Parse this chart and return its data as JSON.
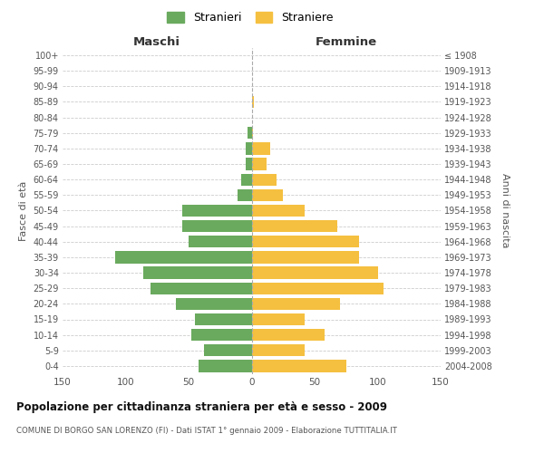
{
  "age_groups": [
    "100+",
    "95-99",
    "90-94",
    "85-89",
    "80-84",
    "75-79",
    "70-74",
    "65-69",
    "60-64",
    "55-59",
    "50-54",
    "45-49",
    "40-44",
    "35-39",
    "30-34",
    "25-29",
    "20-24",
    "15-19",
    "10-14",
    "5-9",
    "0-4"
  ],
  "birth_years": [
    "≤ 1908",
    "1909-1913",
    "1914-1918",
    "1919-1923",
    "1924-1928",
    "1929-1933",
    "1934-1938",
    "1939-1943",
    "1944-1948",
    "1949-1953",
    "1954-1958",
    "1959-1963",
    "1964-1968",
    "1969-1973",
    "1974-1978",
    "1979-1983",
    "1984-1988",
    "1989-1993",
    "1994-1998",
    "1999-2003",
    "2004-2008"
  ],
  "maschi": [
    0,
    0,
    0,
    0,
    0,
    3,
    5,
    5,
    8,
    11,
    55,
    55,
    50,
    108,
    86,
    80,
    60,
    45,
    48,
    38,
    42
  ],
  "femmine": [
    0,
    0,
    0,
    2,
    0,
    1,
    15,
    12,
    20,
    25,
    42,
    68,
    85,
    85,
    100,
    105,
    70,
    42,
    58,
    42,
    75
  ],
  "maschi_color": "#6aaa5e",
  "femmine_color": "#f5c040",
  "bg_color": "#ffffff",
  "grid_color": "#cccccc",
  "title": "Popolazione per cittadinanza straniera per età e sesso - 2009",
  "subtitle": "COMUNE DI BORGO SAN LORENZO (FI) - Dati ISTAT 1° gennaio 2009 - Elaborazione TUTTITALIA.IT",
  "ylabel_left": "Fasce di età",
  "ylabel_right": "Anni di nascita",
  "label_maschi": "Maschi",
  "label_femmine": "Femmine",
  "legend_m": "Stranieri",
  "legend_f": "Straniere",
  "xlim": 150
}
